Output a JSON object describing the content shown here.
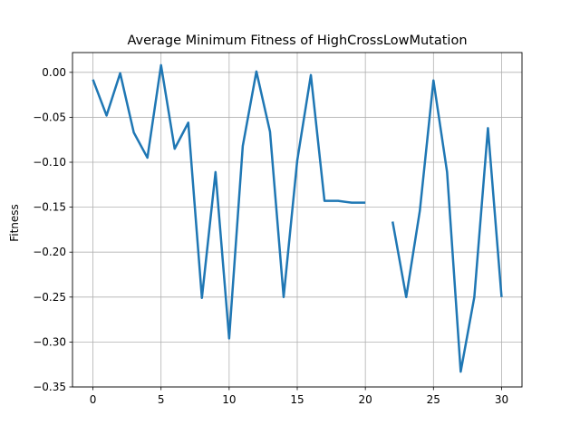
{
  "chart_data": {
    "type": "line",
    "title": "Average Minimum Fitness of HighCrossLowMutation",
    "xlabel": "",
    "ylabel": "Fitness",
    "xlim": [
      -1.5,
      31.5
    ],
    "ylim": [
      -0.35,
      0.022
    ],
    "grid": true,
    "xticks": [
      0,
      5,
      10,
      15,
      20,
      25,
      30
    ],
    "yticks": [
      0.0,
      -0.05,
      -0.1,
      -0.15,
      -0.2,
      -0.25,
      -0.3,
      -0.35
    ],
    "ytick_labels": [
      "0.00",
      "−0.05",
      "−0.10",
      "−0.15",
      "−0.20",
      "−0.25",
      "−0.30",
      "−0.35"
    ],
    "series": [
      {
        "color": "#1f77b4",
        "x": [
          0,
          1,
          2,
          3,
          4,
          5,
          6,
          7,
          8,
          9,
          10,
          11,
          12,
          13,
          14,
          15,
          16,
          17,
          18,
          19,
          20,
          21,
          22,
          23,
          24,
          25,
          26,
          27,
          28,
          29,
          30
        ],
        "y": [
          -0.008,
          -0.048,
          -0.001,
          -0.067,
          -0.095,
          0.008,
          -0.085,
          -0.056,
          -0.251,
          -0.111,
          -0.296,
          -0.082,
          0.001,
          -0.066,
          -0.25,
          -0.098,
          -0.003,
          -0.143,
          -0.143,
          -0.145,
          -0.145,
          null,
          -0.166,
          -0.25,
          -0.154,
          -0.009,
          -0.111,
          -0.333,
          -0.25,
          -0.062,
          -0.25
        ]
      }
    ]
  }
}
